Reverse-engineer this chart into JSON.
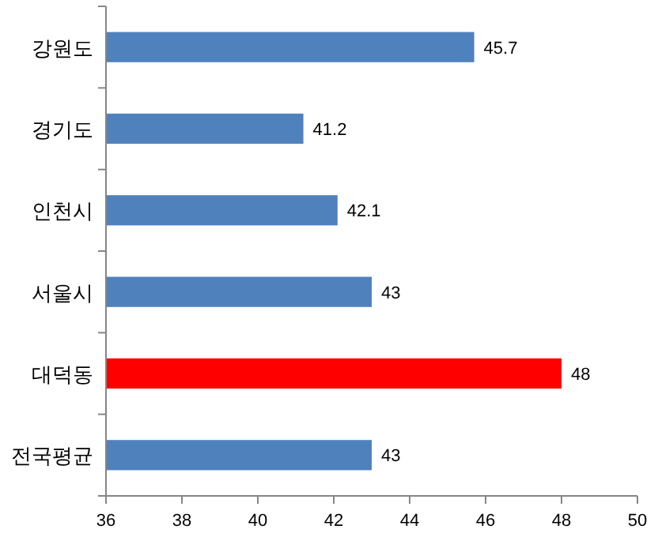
{
  "chart_data": {
    "type": "bar",
    "orientation": "horizontal",
    "categories": [
      "강원도",
      "경기도",
      "인천시",
      "서울시",
      "대덕동",
      "전국평균"
    ],
    "values": [
      45.7,
      41.2,
      42.1,
      43,
      48,
      43
    ],
    "colors": [
      "#4f81bd",
      "#4f81bd",
      "#4f81bd",
      "#4f81bd",
      "#ff0000",
      "#4f81bd"
    ],
    "xlim": [
      36,
      50
    ],
    "xticks": [
      36,
      38,
      40,
      42,
      44,
      46,
      48,
      50
    ],
    "data_labels": true
  }
}
